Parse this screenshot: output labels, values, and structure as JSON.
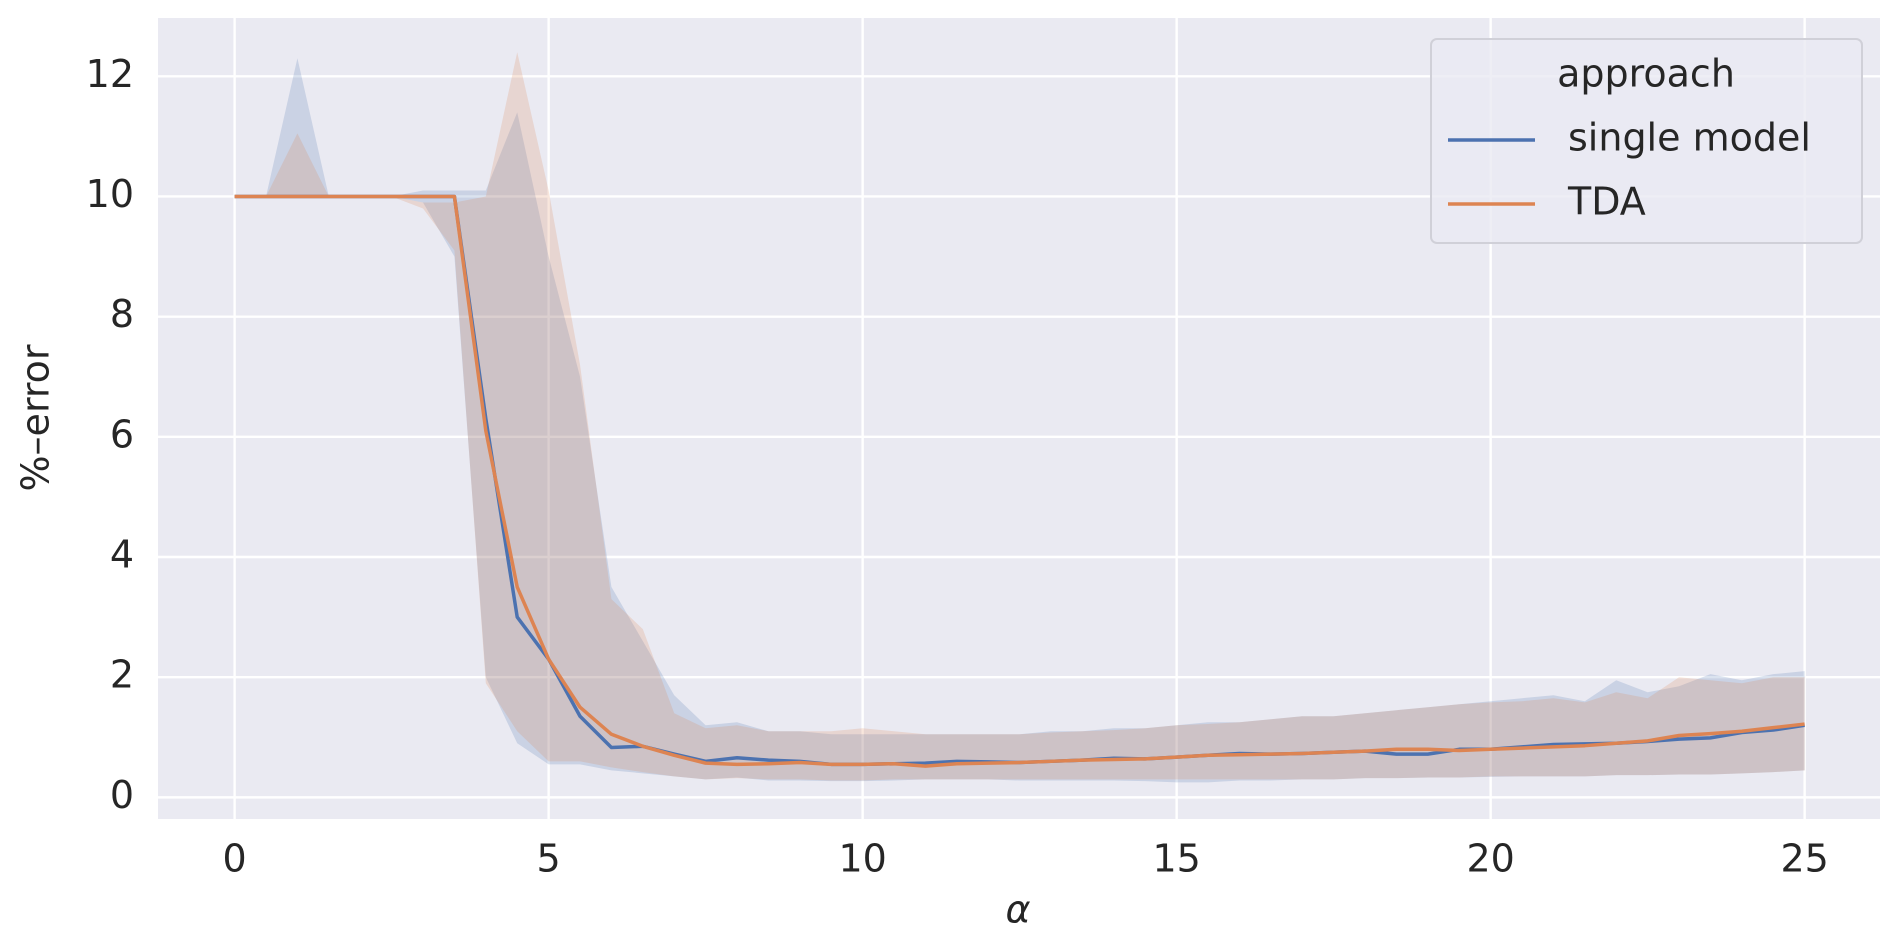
{
  "chart_data": {
    "type": "line",
    "xlabel": "α",
    "ylabel": "%–error",
    "legend_title": "approach",
    "legend": "upper right",
    "grid": true,
    "x": [
      0,
      0.5,
      1,
      1.5,
      2,
      2.5,
      3,
      3.5,
      4,
      4.5,
      5,
      5.5,
      6,
      6.5,
      7,
      7.5,
      8,
      8.5,
      9,
      9.5,
      10,
      10.5,
      11,
      11.5,
      12,
      12.5,
      13,
      13.5,
      14,
      14.5,
      15,
      15.5,
      16,
      16.5,
      17,
      17.5,
      18,
      18.5,
      19,
      19.5,
      20,
      20.5,
      21,
      21.5,
      22,
      22.5,
      23,
      23.5,
      24,
      24.5,
      25
    ],
    "xlim": [
      -1.22,
      26.2
    ],
    "xticks": [
      0,
      5,
      10,
      15,
      20,
      25
    ],
    "ylim": [
      -0.36,
      12.97
    ],
    "yticks": [
      0,
      2,
      4,
      6,
      8,
      10,
      12
    ],
    "series": [
      {
        "name": "single model",
        "color": "#4c72b0",
        "values": [
          10,
          10,
          10,
          10,
          10,
          10,
          10,
          10,
          6.3,
          3.0,
          2.3,
          1.35,
          0.83,
          0.85,
          0.72,
          0.6,
          0.66,
          0.62,
          0.6,
          0.55,
          0.55,
          0.56,
          0.57,
          0.6,
          0.59,
          0.58,
          0.6,
          0.62,
          0.65,
          0.64,
          0.67,
          0.7,
          0.73,
          0.72,
          0.73,
          0.75,
          0.77,
          0.72,
          0.72,
          0.8,
          0.8,
          0.84,
          0.88,
          0.89,
          0.9,
          0.93,
          0.97,
          0.99,
          1.08,
          1.12,
          1.2
        ],
        "upper": [
          10,
          10,
          12.3,
          10,
          10,
          10,
          10.1,
          10.1,
          10.1,
          11.4,
          9,
          7,
          3.5,
          2.6,
          1.7,
          1.2,
          1.25,
          1.1,
          1.1,
          1.05,
          1.05,
          1.05,
          1.05,
          1.05,
          1.05,
          1.05,
          1.1,
          1.1,
          1.15,
          1.15,
          1.2,
          1.25,
          1.25,
          1.3,
          1.35,
          1.35,
          1.4,
          1.45,
          1.5,
          1.55,
          1.6,
          1.65,
          1.7,
          1.6,
          1.95,
          1.75,
          1.85,
          2.05,
          1.95,
          2.05,
          2.1
        ],
        "lower": [
          10,
          10,
          10,
          10,
          10,
          10,
          9.9,
          9,
          2,
          0.9,
          0.55,
          0.55,
          0.45,
          0.4,
          0.35,
          0.3,
          0.33,
          0.28,
          0.28,
          0.27,
          0.27,
          0.28,
          0.3,
          0.3,
          0.3,
          0.28,
          0.28,
          0.28,
          0.28,
          0.27,
          0.25,
          0.25,
          0.28,
          0.28,
          0.3,
          0.3,
          0.32,
          0.32,
          0.33,
          0.33,
          0.34,
          0.35,
          0.35,
          0.35,
          0.37,
          0.37,
          0.38,
          0.38,
          0.4,
          0.42,
          0.45
        ]
      },
      {
        "name": "TDA",
        "color": "#dd8452",
        "values": [
          10,
          10,
          10,
          10,
          10,
          10,
          10,
          10,
          6.1,
          3.5,
          2.3,
          1.5,
          1.05,
          0.85,
          0.7,
          0.57,
          0.55,
          0.56,
          0.58,
          0.55,
          0.55,
          0.56,
          0.52,
          0.56,
          0.57,
          0.58,
          0.6,
          0.62,
          0.63,
          0.64,
          0.67,
          0.7,
          0.71,
          0.72,
          0.73,
          0.75,
          0.77,
          0.8,
          0.8,
          0.78,
          0.8,
          0.82,
          0.84,
          0.86,
          0.9,
          0.94,
          1.03,
          1.06,
          1.1,
          1.16,
          1.22
        ],
        "upper": [
          10,
          10,
          11.05,
          10,
          10,
          10,
          9.9,
          9.9,
          10,
          12.4,
          10.1,
          7.2,
          3.3,
          2.8,
          1.4,
          1.15,
          1.2,
          1.1,
          1.1,
          1.1,
          1.15,
          1.1,
          1.05,
          1.05,
          1.05,
          1.05,
          1.08,
          1.1,
          1.12,
          1.15,
          1.2,
          1.22,
          1.25,
          1.3,
          1.35,
          1.35,
          1.4,
          1.45,
          1.5,
          1.55,
          1.58,
          1.6,
          1.65,
          1.58,
          1.75,
          1.65,
          2.0,
          1.95,
          1.9,
          2.0,
          2.0
        ],
        "lower": [
          10,
          10,
          10,
          10,
          10,
          10,
          9.8,
          9.1,
          1.9,
          1.1,
          0.6,
          0.6,
          0.5,
          0.42,
          0.35,
          0.3,
          0.32,
          0.3,
          0.3,
          0.28,
          0.28,
          0.3,
          0.3,
          0.3,
          0.3,
          0.3,
          0.3,
          0.3,
          0.3,
          0.3,
          0.3,
          0.3,
          0.3,
          0.3,
          0.3,
          0.3,
          0.32,
          0.32,
          0.33,
          0.33,
          0.35,
          0.35,
          0.35,
          0.35,
          0.37,
          0.37,
          0.38,
          0.38,
          0.4,
          0.42,
          0.45
        ]
      }
    ]
  }
}
